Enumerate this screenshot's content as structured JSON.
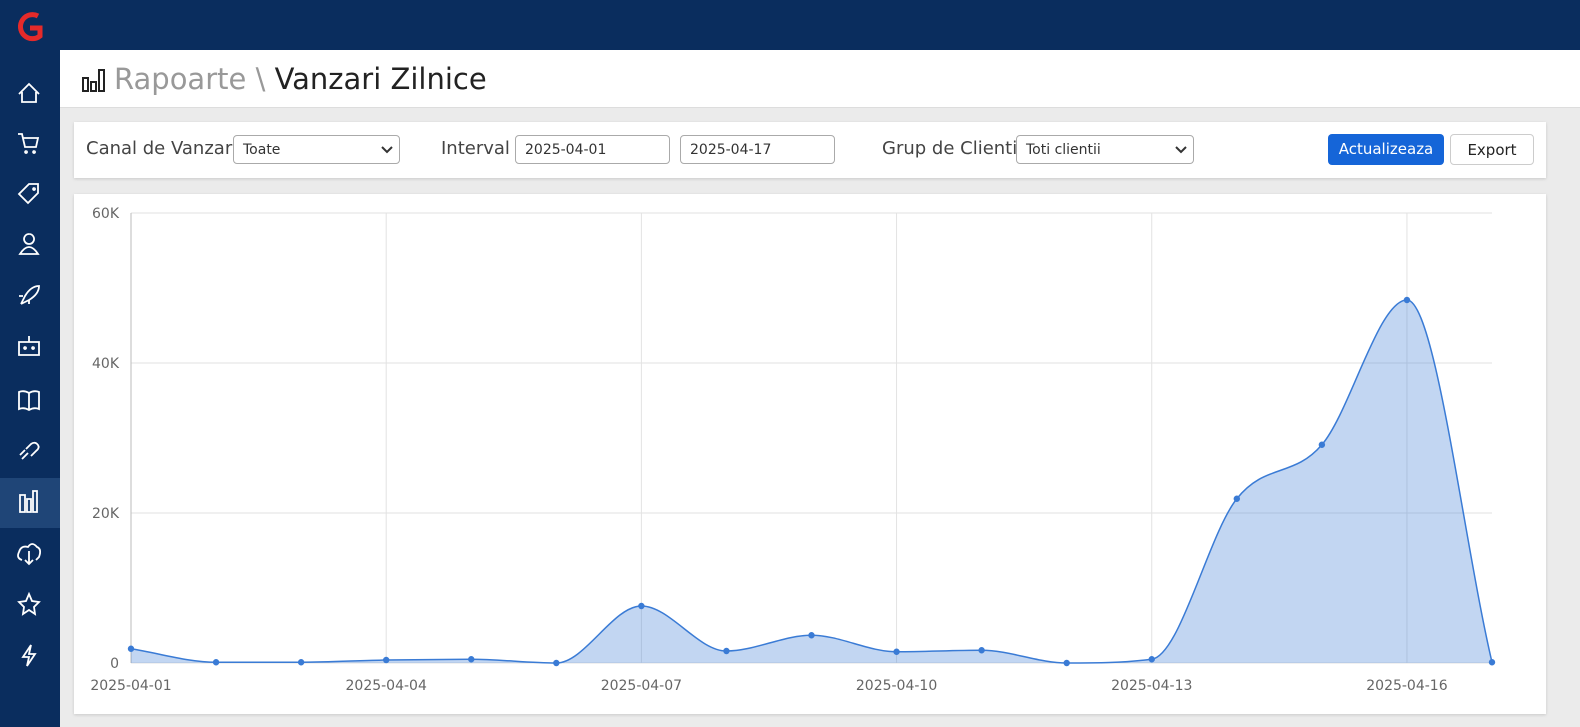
{
  "header": {
    "breadcrumb": "Rapoarte",
    "separator": "\\",
    "title": "Vanzari Zilnice"
  },
  "filters": {
    "channel_label": "Canal de Vanzari",
    "channel_value": "Toate",
    "interval_label": "Interval",
    "date_from": "2025-04-01",
    "date_to": "2025-04-17",
    "group_label": "Grup de Clienti",
    "group_value": "Toti clientii",
    "update_button": "Actualizeaza",
    "export_button": "Export"
  },
  "chart_data": {
    "type": "area",
    "categories": [
      "2025-04-01",
      null,
      null,
      "2025-04-04",
      null,
      null,
      "2025-04-07",
      null,
      null,
      "2025-04-10",
      null,
      null,
      "2025-04-13",
      null,
      null,
      "2025-04-16",
      null
    ],
    "values": [
      1900,
      100,
      100,
      400,
      500,
      0,
      7600,
      1600,
      3700,
      1500,
      1700,
      0,
      500,
      21900,
      29100,
      48400,
      100
    ],
    "color": "#3a7bd5",
    "ylim": [
      0,
      60000
    ],
    "yticks": [
      0,
      {
        "value": 20000,
        "label": "20K"
      },
      {
        "value": 40000,
        "label": "40K"
      },
      {
        "value": 60000,
        "label": "60K"
      }
    ],
    "grid": true
  }
}
